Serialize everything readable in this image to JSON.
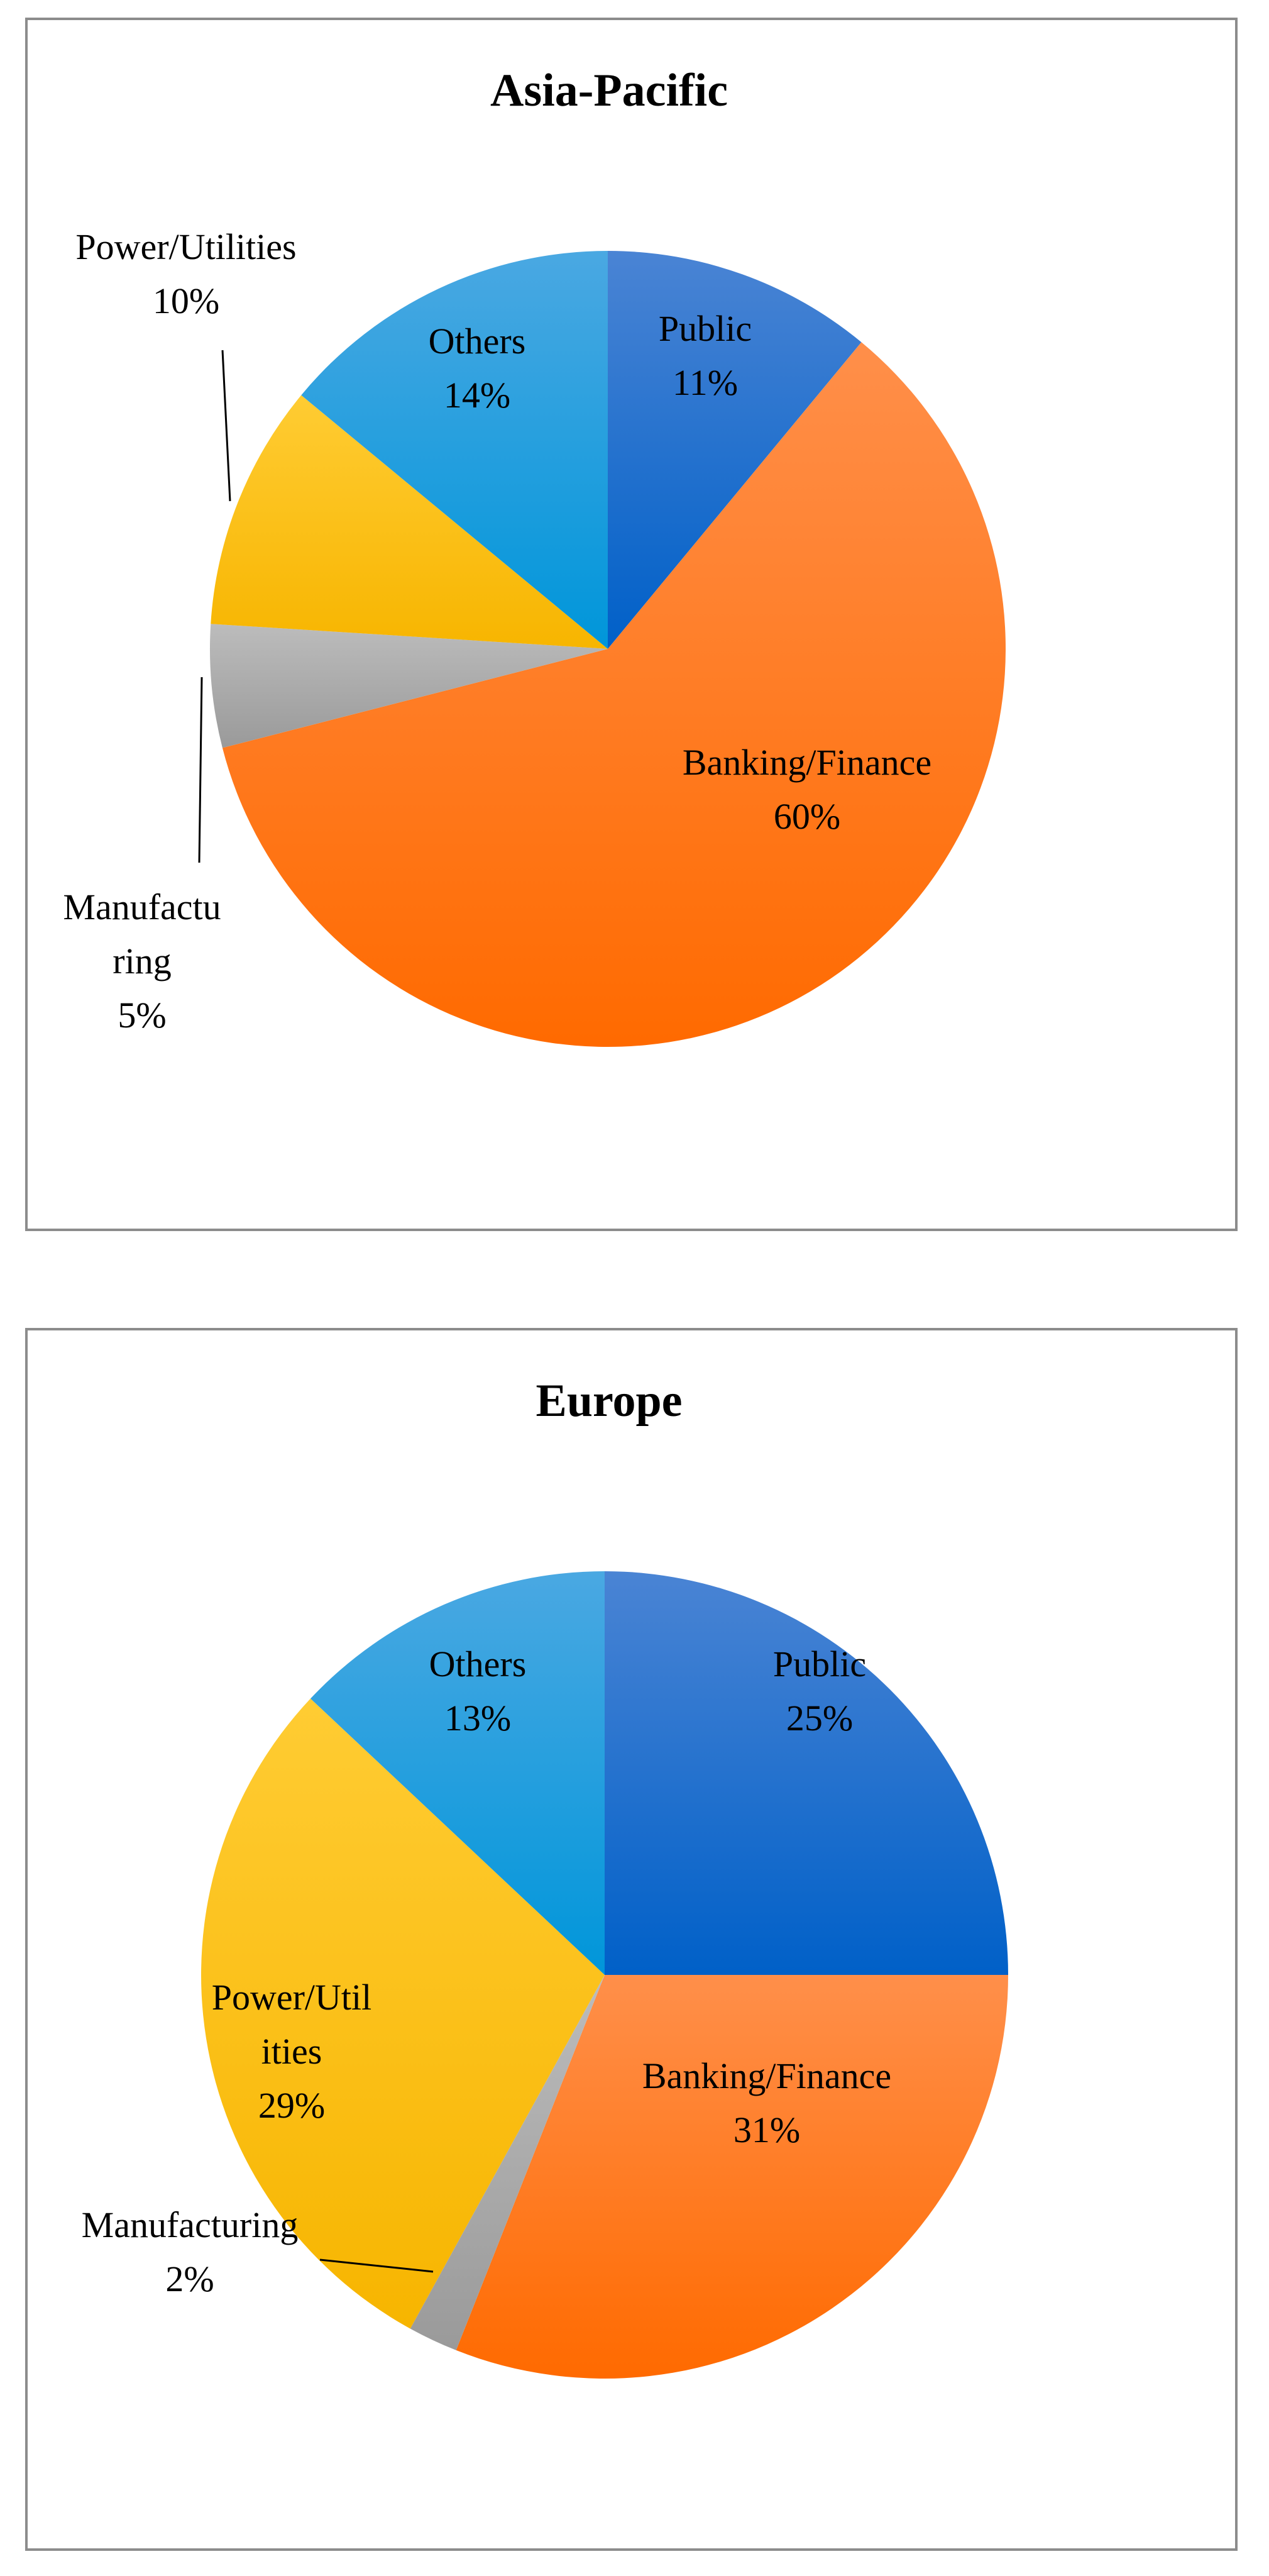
{
  "chart_data": [
    {
      "type": "pie",
      "title": "Asia-Pacific",
      "slices": [
        {
          "label": "Public",
          "value": 11,
          "value_label": "11%",
          "color_top": "#4a84d4",
          "color_bottom": "#0060c8"
        },
        {
          "label": "Banking/Finance",
          "value": 60,
          "value_label": "60%",
          "color_top": "#ff8f4a",
          "color_bottom": "#ff6a00"
        },
        {
          "label": "Manufacturing",
          "value": 5,
          "value_label": "5%",
          "color_top": "#bcbcbc",
          "color_bottom": "#9a9a9a"
        },
        {
          "label": "Power/Utilities",
          "value": 10,
          "value_label": "10%",
          "color_top": "#ffcc33",
          "color_bottom": "#f7b500"
        },
        {
          "label": "Others",
          "value": 14,
          "value_label": "14%",
          "color_top": "#4aa8e2",
          "color_bottom": "#0096da"
        }
      ],
      "label_lines": {
        "Public": [
          "Public",
          "11%"
        ],
        "Banking/Finance": [
          "Banking/Finance",
          "60%"
        ],
        "Manufacturing": [
          "Manufactu",
          "ring",
          "5%"
        ],
        "Power/Utilities": [
          "Power/Utilities",
          "10%"
        ],
        "Others": [
          "Others",
          "14%"
        ]
      },
      "legend": "none"
    },
    {
      "type": "pie",
      "title": "Europe",
      "slices": [
        {
          "label": "Public",
          "value": 25,
          "value_label": "25%",
          "color_top": "#4a84d4",
          "color_bottom": "#0060c8"
        },
        {
          "label": "Banking/Finance",
          "value": 31,
          "value_label": "31%",
          "color_top": "#ff8f4a",
          "color_bottom": "#ff6a00"
        },
        {
          "label": "Manufacturing",
          "value": 2,
          "value_label": "2%",
          "color_top": "#bcbcbc",
          "color_bottom": "#9a9a9a"
        },
        {
          "label": "Power/Utilities",
          "value": 29,
          "value_label": "29%",
          "color_top": "#ffcc33",
          "color_bottom": "#f7b500"
        },
        {
          "label": "Others",
          "value": 13,
          "value_label": "13%",
          "color_top": "#4aa8e2",
          "color_bottom": "#0096da"
        }
      ],
      "label_lines": {
        "Public": [
          "Public",
          "25%"
        ],
        "Banking/Finance": [
          "Banking/Finance",
          "31%"
        ],
        "Manufacturing": [
          "Manufacturing",
          "2%"
        ],
        "Power/Utilities": [
          "Power/Util",
          "ities",
          "29%"
        ],
        "Others": [
          "Others",
          "13%"
        ]
      },
      "legend": "none"
    }
  ]
}
